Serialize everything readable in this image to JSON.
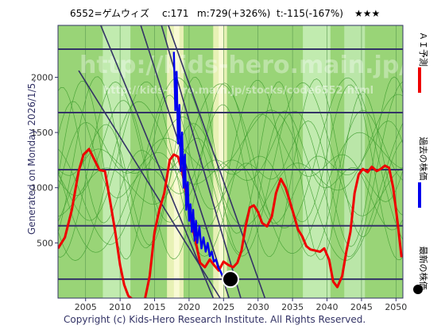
{
  "header": {
    "code_name": "6552=ゲムウィズ",
    "current": "c:171",
    "max": "m:729(+326%)",
    "target": "t:-115(-167%)",
    "stars": "★★★"
  },
  "side_label": "Generated on Monday 2026/1/5.",
  "footer": "Copyright (c) Kids-Hero Research Institute. All Rights Reserved.",
  "watermark": {
    "line1": "http://kids-hero.main.jp/",
    "line2": "http://kids-hero.main.jp/stocks/code6552.html"
  },
  "legend": [
    {
      "label": "ＡＩ予測",
      "color": "#ee0000",
      "marker": "line"
    },
    {
      "label": "過去の株価",
      "color": "#0000ee",
      "marker": "line"
    },
    {
      "label": "最新の株価",
      "color": "#000000",
      "marker": "dot"
    }
  ],
  "chart_data": {
    "type": "line",
    "title": "",
    "xlabel": "",
    "ylabel": "",
    "xlim": [
      2001,
      2051
    ],
    "ylim": [
      0,
      2470
    ],
    "x_ticks": [
      2005,
      2010,
      2015,
      2020,
      2025,
      2030,
      2035,
      2040,
      2045,
      2050
    ],
    "y_ticks": [
      500,
      1000,
      1500,
      2000
    ],
    "grid": true,
    "legend_position": "right",
    "colors": {
      "background": "#88cc66",
      "grid": "#333366",
      "ai": "#ee0000",
      "past": "#0000ee",
      "latest": "#000000"
    },
    "horizontal_levels": [
      171,
      655,
      1163,
      1680,
      2255
    ],
    "series": [
      {
        "name": "ＡＩ予測",
        "x": [
          2001,
          2002,
          2003,
          2004,
          2004.7,
          2005.5,
          2006.3,
          2007,
          2007.8,
          2008.5,
          2009.3,
          2010,
          2010.6,
          2011.2,
          2012,
          2012.8,
          2013.5,
          2014.3,
          2015,
          2015.7,
          2016.4,
          2017.2,
          2017.8,
          2018.4,
          2019,
          2019.7,
          2020.3,
          2021,
          2021.6,
          2022.3,
          2023,
          2023.6,
          2024.3,
          2025,
          2025.7,
          2026.4,
          2027,
          2027.6,
          2028.2,
          2028.8,
          2029.4,
          2030,
          2030.6,
          2031.3,
          2032,
          2032.6,
          2033.3,
          2034,
          2034.6,
          2035.2,
          2035.8,
          2036.4,
          2037,
          2037.6,
          2038.3,
          2039,
          2039.6,
          2040.3,
          2040.9,
          2041.5,
          2042.2,
          2042.8,
          2043.4,
          2044,
          2044.6,
          2045.2,
          2045.9,
          2046.5,
          2047.2,
          2047.8,
          2048.4,
          2049,
          2049.6,
          2050.2,
          2050.8
        ],
        "y": [
          450,
          550,
          800,
          1150,
          1300,
          1350,
          1250,
          1160,
          1150,
          900,
          600,
          300,
          120,
          20,
          -20,
          -80,
          -40,
          200,
          600,
          800,
          950,
          1250,
          1300,
          1280,
          1150,
          900,
          700,
          500,
          320,
          280,
          350,
          300,
          250,
          330,
          300,
          280,
          320,
          430,
          650,
          820,
          840,
          780,
          680,
          650,
          740,
          950,
          1080,
          1000,
          880,
          750,
          620,
          560,
          470,
          440,
          430,
          420,
          450,
          350,
          150,
          100,
          200,
          420,
          600,
          950,
          1120,
          1170,
          1140,
          1190,
          1150,
          1170,
          1200,
          1180,
          1000,
          700,
          370
        ]
      },
      {
        "name": "過去の株価",
        "x": [
          2017.8,
          2018.0,
          2018.2,
          2018.4,
          2018.6,
          2018.8,
          2019.0,
          2019.2,
          2019.4,
          2019.6,
          2019.8,
          2020.0,
          2020.2,
          2020.4,
          2020.6,
          2020.8,
          2021.0,
          2021.2,
          2021.5,
          2021.8,
          2022.1,
          2022.4,
          2022.7,
          2023.0,
          2023.3,
          2023.6,
          2023.9,
          2024.2,
          2024.5,
          2024.8
        ],
        "y": [
          2230,
          1700,
          2050,
          1400,
          1750,
          1150,
          1500,
          1000,
          1300,
          800,
          1050,
          700,
          850,
          600,
          800,
          520,
          700,
          500,
          650,
          450,
          550,
          420,
          500,
          380,
          420,
          330,
          350,
          280,
          250,
          210
        ]
      }
    ],
    "latest_point": {
      "x": 2026.0,
      "y": 171
    }
  }
}
